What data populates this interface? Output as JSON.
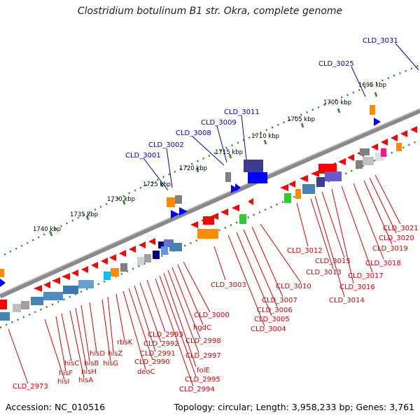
{
  "title": "Clostridium botulinum B1 str. Okra, complete genome",
  "accession": "Accession: NC_010516",
  "topology": "Topology: circular; Length: 3,958,233 bp; Genes: 3,761",
  "colors": {
    "backbone": "#808080",
    "scale_dots": "#228b22",
    "label_blue": "#0000cc",
    "label_red": "#dd0000"
  },
  "scale_ticks": [
    "1695 kbp",
    "1700 kbp",
    "1705 kbp",
    "1710 kbp",
    "1715 kbp",
    "1720 kbp",
    "1725 kbp",
    "1730 kbp",
    "1735 kbp",
    "1740 kbp"
  ],
  "top_labels": [
    "CLD_3031",
    "CLD_3025",
    "CLD_3011",
    "CLD_3009",
    "CLD_3008",
    "CLD_3002",
    "CLD_3001"
  ],
  "bottom_labels": [
    "CLD_3021",
    "CLD_3020",
    "CLD_3019",
    "CLD_3018",
    "CLD_3017",
    "CLD_3016",
    "CLD_3015",
    "CLD_3014",
    "CLD_3013",
    "CLD_3012",
    "CLD_3010",
    "CLD_3007",
    "CLD_3006",
    "CLD_3005",
    "CLD_3004",
    "CLD_3003",
    "CLD_3000",
    "hgdC",
    "CLD_2998",
    "CLD_2997",
    "folE",
    "CLD_2995",
    "CLD_2994",
    "CLD_2993",
    "CLD_2992",
    "CLD_2991",
    "CLD_2990",
    "deoC",
    "rbsK",
    "hisZ",
    "hisG",
    "hisD",
    "hisB",
    "hisH",
    "hisA",
    "hisC",
    "hisF",
    "hisI",
    "CLD_2973"
  ]
}
